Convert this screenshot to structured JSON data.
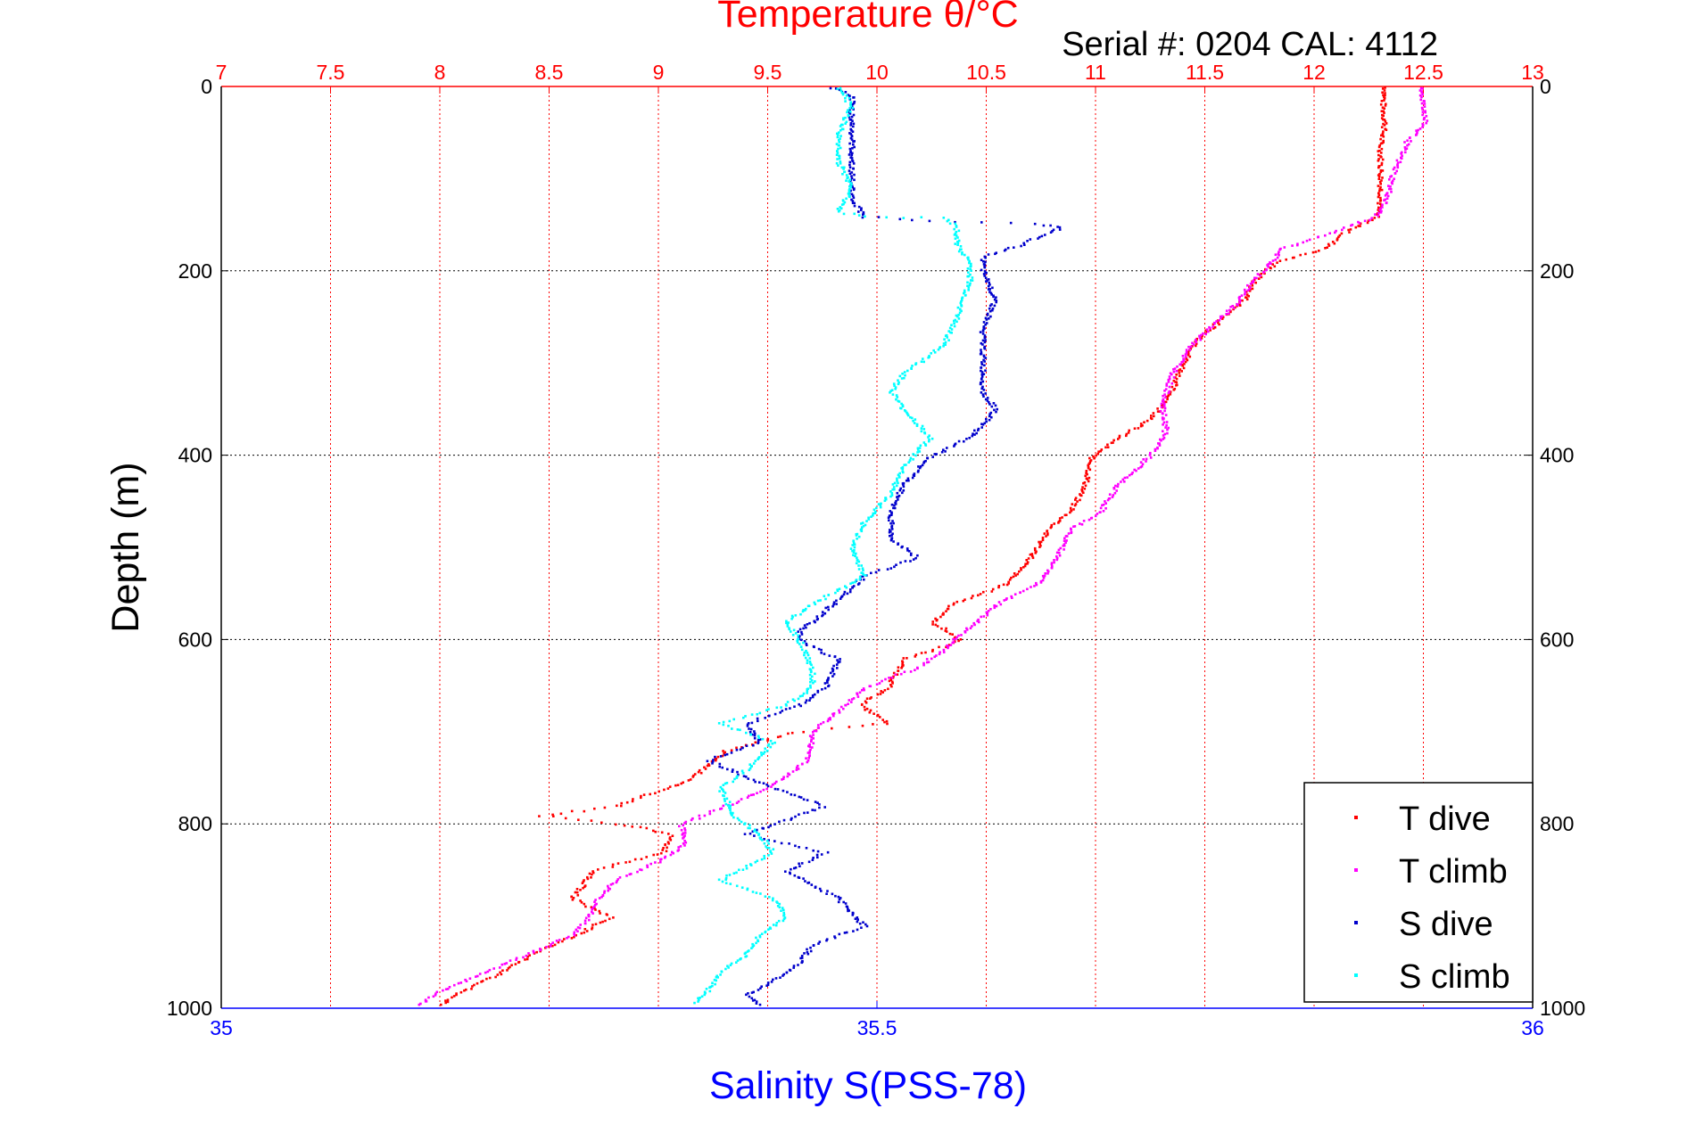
{
  "chart_data": {
    "type": "scatter",
    "title": "Temperature θ/°C",
    "subtitle": "Serial #: 0204  CAL: 4112",
    "xlabel": "Salinity S(PSS-78)",
    "ylabel": "Depth (m)",
    "x_temperature": {
      "label": "Temperature θ/°C",
      "lim": [
        7,
        13
      ],
      "ticks": [
        "7",
        "7.5",
        "8",
        "8.5",
        "9",
        "9.5",
        "10",
        "10.5",
        "11",
        "11.5",
        "12",
        "12.5",
        "13"
      ],
      "color": "#ff0000"
    },
    "x_salinity": {
      "label": "Salinity S(PSS-78)",
      "lim": [
        35,
        36
      ],
      "ticks": [
        "35",
        "35.5",
        "36"
      ],
      "color": "#0000ff"
    },
    "y_depth": {
      "label": "Depth (m)",
      "lim": [
        0,
        1000
      ],
      "reversed": true,
      "ticks": [
        "0",
        "200",
        "400",
        "600",
        "800",
        "1000"
      ]
    },
    "grid": true,
    "legend_position": "bottom-right",
    "legend": [
      {
        "label": "T dive",
        "color": "#ff0000"
      },
      {
        "label": "T climb",
        "color": "#ff00ff"
      },
      {
        "label": "S dive",
        "color": "#0000cc"
      },
      {
        "label": "S climb",
        "color": "#00ffff"
      }
    ],
    "series": [
      {
        "name": "T dive",
        "axis": "temperature",
        "color": "#ff0000",
        "points": [
          [
            12.32,
            0
          ],
          [
            12.31,
            20
          ],
          [
            12.32,
            40
          ],
          [
            12.3,
            60
          ],
          [
            12.3,
            80
          ],
          [
            12.3,
            100
          ],
          [
            12.3,
            120
          ],
          [
            12.28,
            140
          ],
          [
            12.12,
            160
          ],
          [
            12.05,
            175
          ],
          [
            11.82,
            190
          ],
          [
            11.72,
            210
          ],
          [
            11.68,
            230
          ],
          [
            11.58,
            250
          ],
          [
            11.48,
            270
          ],
          [
            11.42,
            290
          ],
          [
            11.38,
            310
          ],
          [
            11.32,
            340
          ],
          [
            11.25,
            360
          ],
          [
            11.1,
            380
          ],
          [
            10.98,
            400
          ],
          [
            10.95,
            430
          ],
          [
            10.88,
            460
          ],
          [
            10.78,
            480
          ],
          [
            10.7,
            510
          ],
          [
            10.58,
            540
          ],
          [
            10.35,
            560
          ],
          [
            10.25,
            580
          ],
          [
            10.38,
            600
          ],
          [
            10.12,
            620
          ],
          [
            10.05,
            650
          ],
          [
            9.92,
            670
          ],
          [
            10.05,
            690
          ],
          [
            9.6,
            700
          ],
          [
            9.3,
            720
          ],
          [
            9.15,
            750
          ],
          [
            8.8,
            780
          ],
          [
            8.45,
            790
          ],
          [
            8.85,
            800
          ],
          [
            9.05,
            810
          ],
          [
            9.02,
            830
          ],
          [
            8.7,
            850
          ],
          [
            8.6,
            880
          ],
          [
            8.78,
            900
          ],
          [
            8.62,
            920
          ],
          [
            8.42,
            940
          ],
          [
            8.28,
            960
          ],
          [
            8.1,
            980
          ],
          [
            8.0,
            995
          ]
        ]
      },
      {
        "name": "T climb",
        "axis": "temperature",
        "color": "#ff00ff",
        "points": [
          [
            12.48,
            0
          ],
          [
            12.5,
            20
          ],
          [
            12.5,
            40
          ],
          [
            12.42,
            60
          ],
          [
            12.38,
            80
          ],
          [
            12.35,
            100
          ],
          [
            12.33,
            120
          ],
          [
            12.28,
            140
          ],
          [
            12.1,
            155
          ],
          [
            11.85,
            175
          ],
          [
            11.78,
            195
          ],
          [
            11.7,
            215
          ],
          [
            11.62,
            240
          ],
          [
            11.52,
            260
          ],
          [
            11.42,
            285
          ],
          [
            11.35,
            310
          ],
          [
            11.32,
            330
          ],
          [
            11.3,
            350
          ],
          [
            11.32,
            370
          ],
          [
            11.28,
            390
          ],
          [
            11.2,
            410
          ],
          [
            11.1,
            430
          ],
          [
            11.02,
            460
          ],
          [
            10.88,
            480
          ],
          [
            10.82,
            510
          ],
          [
            10.75,
            535
          ],
          [
            10.55,
            560
          ],
          [
            10.4,
            590
          ],
          [
            10.3,
            610
          ],
          [
            10.18,
            630
          ],
          [
            9.95,
            650
          ],
          [
            9.8,
            680
          ],
          [
            9.7,
            700
          ],
          [
            9.68,
            730
          ],
          [
            9.5,
            760
          ],
          [
            9.3,
            780
          ],
          [
            9.1,
            800
          ],
          [
            9.12,
            820
          ],
          [
            9.0,
            840
          ],
          [
            8.8,
            860
          ],
          [
            8.72,
            880
          ],
          [
            8.68,
            900
          ],
          [
            8.6,
            920
          ],
          [
            8.4,
            940
          ],
          [
            8.2,
            960
          ],
          [
            8.0,
            980
          ],
          [
            7.9,
            995
          ]
        ]
      },
      {
        "name": "S dive",
        "axis": "salinity",
        "color": "#0000cc",
        "points": [
          [
            35.465,
            0
          ],
          [
            35.48,
            10
          ],
          [
            35.48,
            40
          ],
          [
            35.48,
            80
          ],
          [
            35.48,
            120
          ],
          [
            35.49,
            140
          ],
          [
            35.54,
            145
          ],
          [
            35.62,
            148
          ],
          [
            35.64,
            152
          ],
          [
            35.61,
            170
          ],
          [
            35.58,
            185
          ],
          [
            35.58,
            200
          ],
          [
            35.59,
            230
          ],
          [
            35.58,
            260
          ],
          [
            35.58,
            300
          ],
          [
            35.58,
            330
          ],
          [
            35.59,
            350
          ],
          [
            35.57,
            380
          ],
          [
            35.54,
            400
          ],
          [
            35.52,
            430
          ],
          [
            35.51,
            460
          ],
          [
            35.51,
            490
          ],
          [
            35.53,
            510
          ],
          [
            35.49,
            530
          ],
          [
            35.47,
            555
          ],
          [
            35.45,
            580
          ],
          [
            35.44,
            590
          ],
          [
            35.44,
            600
          ],
          [
            35.47,
            620
          ],
          [
            35.46,
            650
          ],
          [
            35.44,
            670
          ],
          [
            35.4,
            690
          ],
          [
            35.41,
            710
          ],
          [
            35.37,
            730
          ],
          [
            35.42,
            760
          ],
          [
            35.46,
            780
          ],
          [
            35.42,
            800
          ],
          [
            35.4,
            810
          ],
          [
            35.46,
            830
          ],
          [
            35.43,
            850
          ],
          [
            35.47,
            880
          ],
          [
            35.49,
            910
          ],
          [
            35.45,
            930
          ],
          [
            35.44,
            950
          ],
          [
            35.42,
            970
          ],
          [
            35.4,
            985
          ],
          [
            35.41,
            995
          ]
        ]
      },
      {
        "name": "S climb",
        "axis": "salinity",
        "color": "#00ffff",
        "points": [
          [
            35.47,
            0
          ],
          [
            35.48,
            20
          ],
          [
            35.47,
            50
          ],
          [
            35.47,
            80
          ],
          [
            35.48,
            110
          ],
          [
            35.47,
            135
          ],
          [
            35.49,
            140
          ],
          [
            35.55,
            142
          ],
          [
            35.56,
            150
          ],
          [
            35.56,
            170
          ],
          [
            35.57,
            190
          ],
          [
            35.57,
            210
          ],
          [
            35.56,
            250
          ],
          [
            35.55,
            280
          ],
          [
            35.52,
            310
          ],
          [
            35.51,
            330
          ],
          [
            35.52,
            350
          ],
          [
            35.54,
            380
          ],
          [
            35.52,
            410
          ],
          [
            35.51,
            440
          ],
          [
            35.49,
            470
          ],
          [
            35.48,
            500
          ],
          [
            35.49,
            530
          ],
          [
            35.45,
            560
          ],
          [
            35.43,
            580
          ],
          [
            35.44,
            600
          ],
          [
            35.45,
            630
          ],
          [
            35.45,
            650
          ],
          [
            35.43,
            670
          ],
          [
            35.38,
            690
          ],
          [
            35.42,
            710
          ],
          [
            35.4,
            740
          ],
          [
            35.38,
            760
          ],
          [
            35.39,
            790
          ],
          [
            35.41,
            810
          ],
          [
            35.42,
            830
          ],
          [
            35.38,
            860
          ],
          [
            35.42,
            880
          ],
          [
            35.43,
            900
          ],
          [
            35.41,
            920
          ],
          [
            35.4,
            940
          ],
          [
            35.38,
            960
          ],
          [
            35.37,
            980
          ],
          [
            35.36,
            993
          ]
        ]
      }
    ]
  }
}
